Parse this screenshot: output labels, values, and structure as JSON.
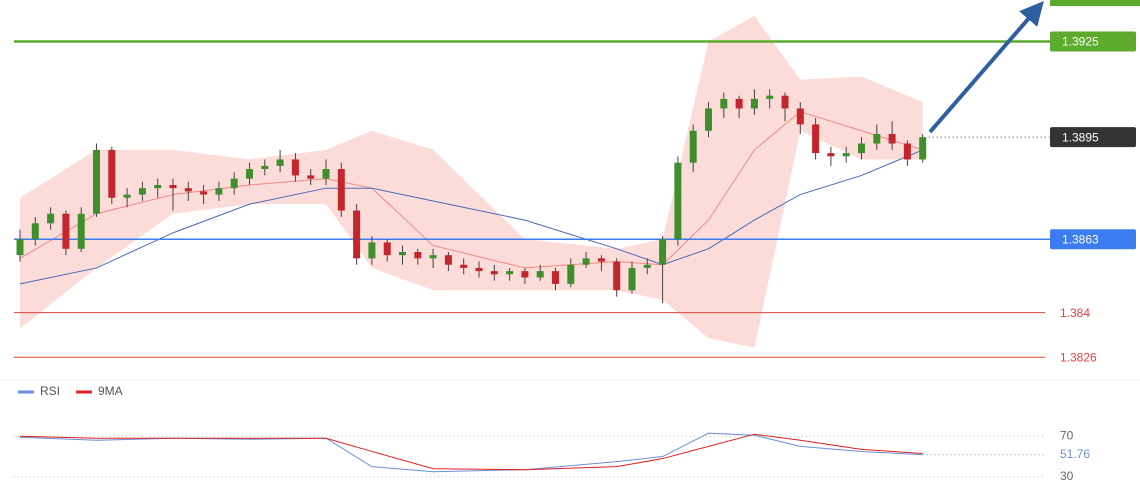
{
  "chart_data": {
    "type": "candlestick",
    "ylim": [
      1.3822,
      1.3938
    ],
    "bull_color": "#3f8f2c",
    "bear_color": "#c4262e",
    "candles": [
      [
        1.3858,
        1.3866,
        1.3856,
        1.3863
      ],
      [
        1.3863,
        1.387,
        1.3861,
        1.3868
      ],
      [
        1.3868,
        1.3873,
        1.3866,
        1.3871
      ],
      [
        1.3871,
        1.3872,
        1.3858,
        1.386
      ],
      [
        1.386,
        1.3873,
        1.3859,
        1.3871
      ],
      [
        1.3871,
        1.3893,
        1.387,
        1.3891
      ],
      [
        1.3891,
        1.3892,
        1.3874,
        1.3876
      ],
      [
        1.3876,
        1.3879,
        1.3873,
        1.3877
      ],
      [
        1.3877,
        1.3881,
        1.3875,
        1.3879
      ],
      [
        1.3879,
        1.3882,
        1.3876,
        1.388
      ],
      [
        1.388,
        1.3882,
        1.3872,
        1.3879
      ],
      [
        1.3879,
        1.3881,
        1.3875,
        1.3878
      ],
      [
        1.3878,
        1.388,
        1.3874,
        1.3877
      ],
      [
        1.3877,
        1.3881,
        1.3875,
        1.3879
      ],
      [
        1.3879,
        1.3884,
        1.3877,
        1.3882
      ],
      [
        1.3882,
        1.3887,
        1.388,
        1.3885
      ],
      [
        1.3885,
        1.3888,
        1.3883,
        1.3886
      ],
      [
        1.3886,
        1.3891,
        1.3884,
        1.3888
      ],
      [
        1.3888,
        1.389,
        1.3881,
        1.3883
      ],
      [
        1.3883,
        1.3885,
        1.388,
        1.3882
      ],
      [
        1.3882,
        1.3888,
        1.388,
        1.3885
      ],
      [
        1.3885,
        1.3887,
        1.387,
        1.3872
      ],
      [
        1.3872,
        1.3874,
        1.3855,
        1.3857
      ],
      [
        1.3857,
        1.3864,
        1.3855,
        1.3862
      ],
      [
        1.3862,
        1.3863,
        1.3856,
        1.3858
      ],
      [
        1.3858,
        1.3861,
        1.3855,
        1.3859
      ],
      [
        1.3859,
        1.386,
        1.3855,
        1.3857
      ],
      [
        1.3857,
        1.386,
        1.3854,
        1.3858
      ],
      [
        1.3858,
        1.3859,
        1.3853,
        1.3855
      ],
      [
        1.3855,
        1.3857,
        1.3852,
        1.3854
      ],
      [
        1.3854,
        1.3856,
        1.3851,
        1.3853
      ],
      [
        1.3853,
        1.3855,
        1.385,
        1.3852
      ],
      [
        1.3852,
        1.3854,
        1.385,
        1.3853
      ],
      [
        1.3853,
        1.3854,
        1.3849,
        1.3851
      ],
      [
        1.3851,
        1.3855,
        1.385,
        1.3853
      ],
      [
        1.3853,
        1.3854,
        1.3847,
        1.3849
      ],
      [
        1.3849,
        1.3857,
        1.3848,
        1.3855
      ],
      [
        1.3855,
        1.3859,
        1.3854,
        1.3857
      ],
      [
        1.3857,
        1.3858,
        1.3853,
        1.3856
      ],
      [
        1.3856,
        1.3857,
        1.3845,
        1.3847
      ],
      [
        1.3847,
        1.3856,
        1.3846,
        1.3854
      ],
      [
        1.3854,
        1.3857,
        1.3852,
        1.3855
      ],
      [
        1.3855,
        1.3864,
        1.3843,
        1.3863
      ],
      [
        1.3863,
        1.3889,
        1.3861,
        1.3887
      ],
      [
        1.3887,
        1.3899,
        1.3884,
        1.3897
      ],
      [
        1.3897,
        1.3906,
        1.3895,
        1.3904
      ],
      [
        1.3904,
        1.3909,
        1.3901,
        1.3907
      ],
      [
        1.3907,
        1.3908,
        1.3901,
        1.3904
      ],
      [
        1.3904,
        1.391,
        1.3902,
        1.3907
      ],
      [
        1.3907,
        1.391,
        1.3904,
        1.3908
      ],
      [
        1.3908,
        1.3909,
        1.39,
        1.3904
      ],
      [
        1.3904,
        1.3906,
        1.3896,
        1.3899
      ],
      [
        1.3899,
        1.3901,
        1.3888,
        1.389
      ],
      [
        1.389,
        1.3892,
        1.3886,
        1.3889
      ],
      [
        1.3889,
        1.3892,
        1.3887,
        1.389
      ],
      [
        1.389,
        1.3895,
        1.3888,
        1.3893
      ],
      [
        1.3893,
        1.3899,
        1.3891,
        1.3896
      ],
      [
        1.3896,
        1.39,
        1.3891,
        1.3893
      ],
      [
        1.3893,
        1.3894,
        1.3886,
        1.3888
      ],
      [
        1.3888,
        1.3896,
        1.3887,
        1.3895
      ]
    ],
    "indicators": {
      "x": [
        0,
        5,
        10,
        15,
        20,
        23,
        27,
        33,
        39,
        42,
        45,
        48,
        51,
        55,
        59
      ],
      "band_color": "#f8c4c0",
      "upper": [
        1.3876,
        1.3891,
        1.3891,
        1.3888,
        1.3891,
        1.3897,
        1.3891,
        1.3863,
        1.386,
        1.3863,
        1.3925,
        1.3933,
        1.3913,
        1.3914,
        1.3906
      ],
      "lower": [
        1.3835,
        1.3854,
        1.3871,
        1.3874,
        1.3874,
        1.3854,
        1.3847,
        1.3847,
        1.3847,
        1.3844,
        1.3832,
        1.3829,
        1.3897,
        1.3888,
        1.3888
      ],
      "middle": [
        1.3857,
        1.3871,
        1.3877,
        1.388,
        1.3882,
        1.3879,
        1.3861,
        1.3854,
        1.3856,
        1.3855,
        1.3869,
        1.3891,
        1.3903,
        1.3897,
        1.3891
      ],
      "middle_color": "#f08a84",
      "ma": [
        1.3849,
        1.3854,
        1.3865,
        1.3874,
        1.3879,
        1.3879,
        1.3875,
        1.3869,
        1.386,
        1.3855,
        1.386,
        1.3869,
        1.3877,
        1.3883,
        1.3891
      ],
      "ma_color": "#4a68b8"
    },
    "levels": [
      {
        "value": 1.3925,
        "color": "#5cab2c",
        "label_style": "box"
      },
      {
        "value": 1.3863,
        "color": "#3b7cf0",
        "label_style": "box"
      },
      {
        "value": 1.384,
        "color": "#e0433c",
        "label_style": "text"
      },
      {
        "value": 1.3826,
        "color": "#e0433c",
        "label_style": "text"
      }
    ],
    "last_price": {
      "value": 1.3895,
      "color": "#333333"
    },
    "rsi_panel": {
      "ylim": [
        17,
        86
      ],
      "yticks": [
        70,
        30
      ],
      "series": [
        {
          "name": "RSI",
          "color": "#6a8fd8",
          "values": [
            69,
            66,
            68,
            67,
            68,
            40,
            35,
            37,
            45,
            50,
            73,
            71,
            60,
            55,
            51.76
          ]
        },
        {
          "name": "9MA",
          "color": "#e02020",
          "values": [
            70,
            68,
            68,
            68,
            68,
            55,
            38,
            37,
            40,
            48,
            60,
            72,
            66,
            57,
            53
          ]
        }
      ]
    }
  }
}
